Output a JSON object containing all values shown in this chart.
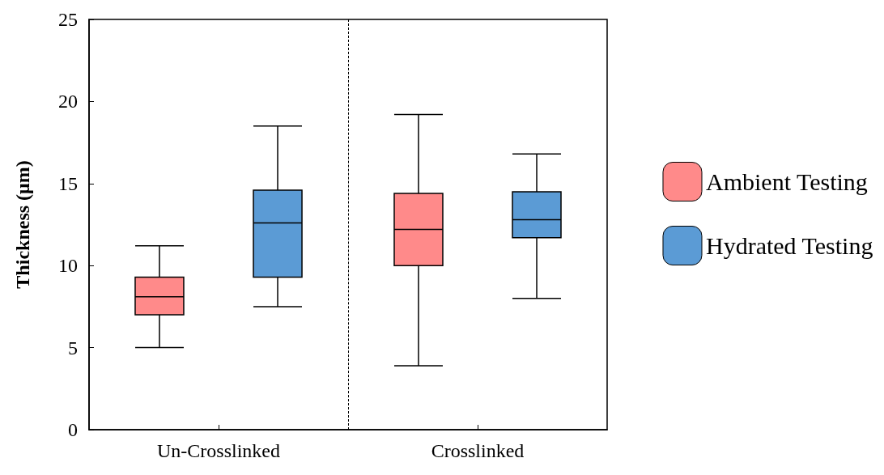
{
  "chart_data": {
    "type": "box",
    "ylabel": "Thickness (μm)",
    "categories": [
      "Un-Crosslinked",
      "Crosslinked"
    ],
    "series": [
      {
        "name": "Ambient Testing",
        "color": "#ff8a8a",
        "boxes": [
          {
            "low": 5.0,
            "q1": 7.0,
            "median": 8.1,
            "q3": 9.3,
            "high": 11.2
          },
          {
            "low": 3.9,
            "q1": 10.0,
            "median": 12.2,
            "q3": 14.4,
            "high": 19.2
          }
        ]
      },
      {
        "name": "Hydrated Testing",
        "color": "#5b9bd5",
        "boxes": [
          {
            "low": 7.5,
            "q1": 9.3,
            "median": 12.6,
            "q3": 14.6,
            "high": 18.5
          },
          {
            "low": 8.0,
            "q1": 11.7,
            "median": 12.8,
            "q3": 14.5,
            "high": 16.8
          }
        ]
      }
    ],
    "ylim": [
      0,
      25
    ],
    "yticks": [
      0,
      5,
      10,
      15,
      20,
      25
    ],
    "grid": false,
    "legend": "right"
  }
}
